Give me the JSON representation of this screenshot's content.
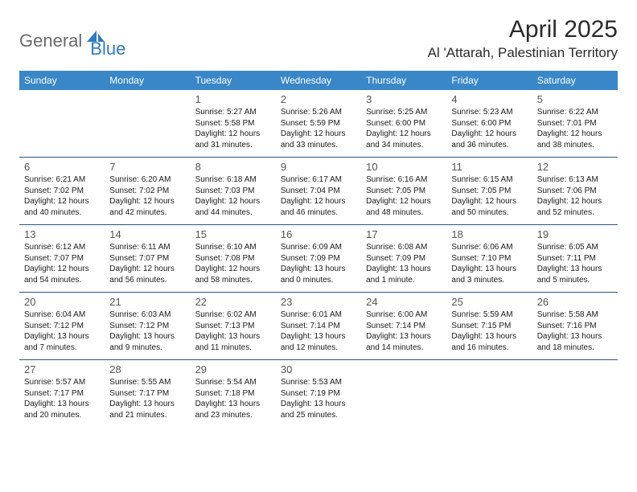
{
  "logo": {
    "text1": "General",
    "text2": "Blue"
  },
  "title": "April 2025",
  "location": "Al 'Attarah, Palestinian Territory",
  "header_bg": "#3a87c8",
  "header_fg": "#ffffff",
  "border_color": "#2a5580",
  "text_color": "#1a1a1a",
  "daynum_color": "#555555",
  "days": [
    "Sunday",
    "Monday",
    "Tuesday",
    "Wednesday",
    "Thursday",
    "Friday",
    "Saturday"
  ],
  "weeks": [
    [
      null,
      null,
      {
        "n": "1",
        "sr": "5:27 AM",
        "ss": "5:58 PM",
        "dl": "12 hours and 31 minutes."
      },
      {
        "n": "2",
        "sr": "5:26 AM",
        "ss": "5:59 PM",
        "dl": "12 hours and 33 minutes."
      },
      {
        "n": "3",
        "sr": "5:25 AM",
        "ss": "6:00 PM",
        "dl": "12 hours and 34 minutes."
      },
      {
        "n": "4",
        "sr": "5:23 AM",
        "ss": "6:00 PM",
        "dl": "12 hours and 36 minutes."
      },
      {
        "n": "5",
        "sr": "6:22 AM",
        "ss": "7:01 PM",
        "dl": "12 hours and 38 minutes."
      }
    ],
    [
      {
        "n": "6",
        "sr": "6:21 AM",
        "ss": "7:02 PM",
        "dl": "12 hours and 40 minutes."
      },
      {
        "n": "7",
        "sr": "6:20 AM",
        "ss": "7:02 PM",
        "dl": "12 hours and 42 minutes."
      },
      {
        "n": "8",
        "sr": "6:18 AM",
        "ss": "7:03 PM",
        "dl": "12 hours and 44 minutes."
      },
      {
        "n": "9",
        "sr": "6:17 AM",
        "ss": "7:04 PM",
        "dl": "12 hours and 46 minutes."
      },
      {
        "n": "10",
        "sr": "6:16 AM",
        "ss": "7:05 PM",
        "dl": "12 hours and 48 minutes."
      },
      {
        "n": "11",
        "sr": "6:15 AM",
        "ss": "7:05 PM",
        "dl": "12 hours and 50 minutes."
      },
      {
        "n": "12",
        "sr": "6:13 AM",
        "ss": "7:06 PM",
        "dl": "12 hours and 52 minutes."
      }
    ],
    [
      {
        "n": "13",
        "sr": "6:12 AM",
        "ss": "7:07 PM",
        "dl": "12 hours and 54 minutes."
      },
      {
        "n": "14",
        "sr": "6:11 AM",
        "ss": "7:07 PM",
        "dl": "12 hours and 56 minutes."
      },
      {
        "n": "15",
        "sr": "6:10 AM",
        "ss": "7:08 PM",
        "dl": "12 hours and 58 minutes."
      },
      {
        "n": "16",
        "sr": "6:09 AM",
        "ss": "7:09 PM",
        "dl": "13 hours and 0 minutes."
      },
      {
        "n": "17",
        "sr": "6:08 AM",
        "ss": "7:09 PM",
        "dl": "13 hours and 1 minute."
      },
      {
        "n": "18",
        "sr": "6:06 AM",
        "ss": "7:10 PM",
        "dl": "13 hours and 3 minutes."
      },
      {
        "n": "19",
        "sr": "6:05 AM",
        "ss": "7:11 PM",
        "dl": "13 hours and 5 minutes."
      }
    ],
    [
      {
        "n": "20",
        "sr": "6:04 AM",
        "ss": "7:12 PM",
        "dl": "13 hours and 7 minutes."
      },
      {
        "n": "21",
        "sr": "6:03 AM",
        "ss": "7:12 PM",
        "dl": "13 hours and 9 minutes."
      },
      {
        "n": "22",
        "sr": "6:02 AM",
        "ss": "7:13 PM",
        "dl": "13 hours and 11 minutes."
      },
      {
        "n": "23",
        "sr": "6:01 AM",
        "ss": "7:14 PM",
        "dl": "13 hours and 12 minutes."
      },
      {
        "n": "24",
        "sr": "6:00 AM",
        "ss": "7:14 PM",
        "dl": "13 hours and 14 minutes."
      },
      {
        "n": "25",
        "sr": "5:59 AM",
        "ss": "7:15 PM",
        "dl": "13 hours and 16 minutes."
      },
      {
        "n": "26",
        "sr": "5:58 AM",
        "ss": "7:16 PM",
        "dl": "13 hours and 18 minutes."
      }
    ],
    [
      {
        "n": "27",
        "sr": "5:57 AM",
        "ss": "7:17 PM",
        "dl": "13 hours and 20 minutes."
      },
      {
        "n": "28",
        "sr": "5:55 AM",
        "ss": "7:17 PM",
        "dl": "13 hours and 21 minutes."
      },
      {
        "n": "29",
        "sr": "5:54 AM",
        "ss": "7:18 PM",
        "dl": "13 hours and 23 minutes."
      },
      {
        "n": "30",
        "sr": "5:53 AM",
        "ss": "7:19 PM",
        "dl": "13 hours and 25 minutes."
      },
      null,
      null,
      null
    ]
  ],
  "labels": {
    "sunrise": "Sunrise:",
    "sunset": "Sunset:",
    "daylight": "Daylight:"
  }
}
